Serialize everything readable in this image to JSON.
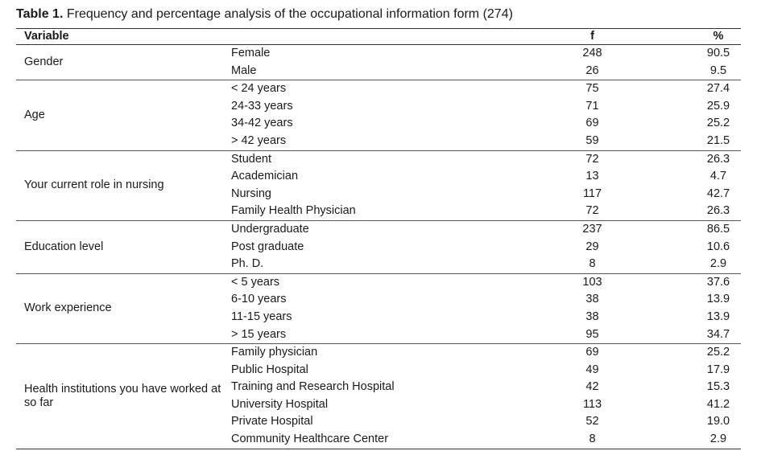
{
  "caption": {
    "label": "Table 1.",
    "text": " Frequency and percentage analysis of the occupational information form (274)"
  },
  "headers": {
    "variable": "Variable",
    "f": "f",
    "percent": "%"
  },
  "groups": [
    {
      "variable": "Gender",
      "rows": [
        {
          "category": "Female",
          "f": "248",
          "percent": "90.5"
        },
        {
          "category": "Male",
          "f": "26",
          "percent": "9.5"
        }
      ]
    },
    {
      "variable": "Age",
      "rows": [
        {
          "category": "< 24 years",
          "f": "75",
          "percent": "27.4"
        },
        {
          "category": "24-33 years",
          "f": "71",
          "percent": "25.9"
        },
        {
          "category": "34-42 years",
          "f": "69",
          "percent": "25.2"
        },
        {
          "category": ">  42 years",
          "f": "59",
          "percent": "21.5"
        }
      ]
    },
    {
      "variable": "Your current role in nursing",
      "rows": [
        {
          "category": "Student",
          "f": "72",
          "percent": "26.3"
        },
        {
          "category": "Academician",
          "f": "13",
          "percent": "4.7"
        },
        {
          "category": "Nursing",
          "f": "117",
          "percent": "42.7"
        },
        {
          "category": "Family Health Physician",
          "f": "72",
          "percent": "26.3"
        }
      ]
    },
    {
      "variable": "Education level",
      "rows": [
        {
          "category": "Undergraduate",
          "f": "237",
          "percent": "86.5"
        },
        {
          "category": "Post graduate",
          "f": "29",
          "percent": "10.6"
        },
        {
          "category": "Ph. D.",
          "f": "8",
          "percent": "2.9"
        }
      ]
    },
    {
      "variable": "Work experience",
      "rows": [
        {
          "category": "< 5 years",
          "f": "103",
          "percent": "37.6"
        },
        {
          "category": "6-10 years",
          "f": "38",
          "percent": "13.9"
        },
        {
          "category": "11-15 years",
          "f": "38",
          "percent": "13.9"
        },
        {
          "category": "> 15 years",
          "f": "95",
          "percent": "34.7"
        }
      ]
    },
    {
      "variable": "Health institutions you have worked at so far",
      "rows": [
        {
          "category": "Family physician",
          "f": "69",
          "percent": "25.2"
        },
        {
          "category": "Public Hospital",
          "f": "49",
          "percent": "17.9"
        },
        {
          "category": "Training and Research Hospital",
          "f": "42",
          "percent": "15.3"
        },
        {
          "category": "University Hospital",
          "f": "113",
          "percent": "41.2"
        },
        {
          "category": "Private Hospital",
          "f": "52",
          "percent": "19.0"
        },
        {
          "category": "Community Healthcare Center",
          "f": "8",
          "percent": "2.9"
        }
      ]
    }
  ]
}
